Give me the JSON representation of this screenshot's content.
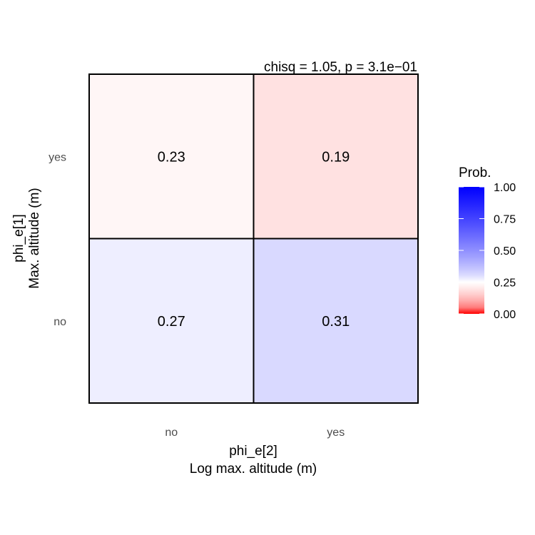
{
  "chart_data": {
    "type": "heatmap",
    "subtitle": "chisq = 1.05, p = 3.1e−01",
    "xlabel": [
      "phi_e[2]",
      "Log max. altitude (m)"
    ],
    "ylabel": [
      "phi_e[1]",
      "Max. altitude (m)"
    ],
    "x_categories": [
      "no",
      "yes"
    ],
    "y_categories": [
      "no",
      "yes"
    ],
    "cells": [
      {
        "x": "no",
        "y": "yes",
        "value": 0.23,
        "label": "0.23"
      },
      {
        "x": "yes",
        "y": "yes",
        "value": 0.19,
        "label": "0.19"
      },
      {
        "x": "no",
        "y": "no",
        "value": 0.27,
        "label": "0.27"
      },
      {
        "x": "yes",
        "y": "no",
        "value": 0.31,
        "label": "0.31"
      }
    ],
    "color_scale": {
      "low": "#ff0000",
      "mid": "#ffffff",
      "high": "#0000ff",
      "midpoint": 0.25,
      "limits": [
        0,
        1
      ]
    },
    "legend": {
      "title": "Prob.",
      "placement": "right",
      "ticks": [
        {
          "value": 1.0,
          "label": "1.00"
        },
        {
          "value": 0.75,
          "label": "0.75"
        },
        {
          "value": 0.5,
          "label": "0.50"
        },
        {
          "value": 0.25,
          "label": "0.25"
        },
        {
          "value": 0.0,
          "label": "0.00"
        }
      ]
    }
  }
}
